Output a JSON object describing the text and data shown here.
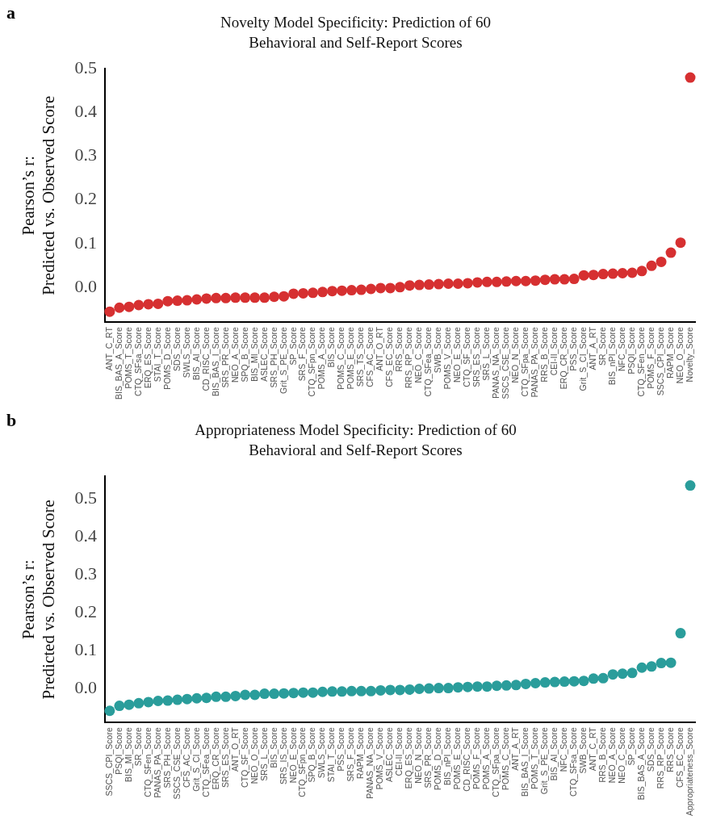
{
  "chart_data": [
    {
      "type": "scatter",
      "title": "Novelty Model Specificity: Prediction of 60\nBehavioral and Self-Report Scores",
      "ylabel": "Pearson’s r:\nPredicted vs. Observed Score",
      "annotations": [
        "a"
      ],
      "marker": "circle",
      "categories": [
        "ANT_C_RT",
        "BIS_BAS_A_Score",
        "POMS_T_Score",
        "CTQ_SFsa_Score",
        "ERQ_ES_Score",
        "STAI_T_Score",
        "POMS_D_Score",
        "SDS_Score",
        "SWLS_Score",
        "BIS_AI_Score",
        "CD_RISC_Score",
        "BIS_BAS_I_Score",
        "SRS_PR_Score",
        "NEO_A_Score",
        "SPQ_B_Score",
        "BIS_MI_Score",
        "ASLEC_Score",
        "SRS_PH_Score",
        "Grit_S_PE_Score",
        "SP_Score",
        "SRS_F_Score",
        "CTQ_SFpn_Score",
        "POMS_A_Score",
        "BIS_Score",
        "POMS_C_Score",
        "POMS_E_Score",
        "SRS_TS_Score",
        "CFS_AC_Score",
        "ANT_O_RT",
        "CFS_EC_Score",
        "RRS_Score",
        "RRS_RP_Score",
        "NEO_C_Score",
        "CTQ_SFea_Score",
        "SWB_Score",
        "POMS_V_Score",
        "NEO_E_Score",
        "CTQ_SF_Score",
        "SRS_ES_Score",
        "SRS_L_Score",
        "PANAS_NA_Score",
        "SSCS_CSE_Score",
        "NEO_N_Score",
        "CTQ_SFpa_Score",
        "PANAS_PA_Score",
        "RRS_B_Score",
        "CEI-II_Score",
        "ERQ_CR_Score",
        "PSS_Score",
        "Grit_S_CI_Score",
        "ANT_A_RT",
        "SR_Score",
        "BIS_nPI_Score",
        "NFC_Score",
        "PSQI_Score",
        "CTQ_SFen_Score",
        "POMS_F_Score",
        "SSCS_CPI_Score",
        "RAPM_Score",
        "NEO_O_Score",
        "Novelty_Score"
      ],
      "series": [
        {
          "color": "#d63031",
          "values": [
            -0.056,
            -0.047,
            -0.045,
            -0.041,
            -0.039,
            -0.038,
            -0.032,
            -0.031,
            -0.03,
            -0.028,
            -0.026,
            -0.025,
            -0.025,
            -0.024,
            -0.024,
            -0.024,
            -0.024,
            -0.022,
            -0.021,
            -0.015,
            -0.014,
            -0.013,
            -0.011,
            -0.009,
            -0.008,
            -0.007,
            -0.006,
            -0.004,
            -0.002,
            -0.002,
            0.0,
            0.004,
            0.005,
            0.006,
            0.007,
            0.008,
            0.008,
            0.009,
            0.011,
            0.012,
            0.012,
            0.013,
            0.014,
            0.014,
            0.015,
            0.017,
            0.018,
            0.018,
            0.019,
            0.027,
            0.028,
            0.03,
            0.031,
            0.032,
            0.033,
            0.037,
            0.049,
            0.058,
            0.079,
            0.102,
            0.48
          ]
        }
      ],
      "ylim": [
        -0.08,
        0.5
      ],
      "yticks": [
        {
          "value": 0,
          "label": "0.0"
        },
        0.1,
        0.2,
        0.3,
        0.4,
        0.5
      ],
      "grid": false
    },
    {
      "type": "scatter",
      "title": "Appropriateness Model Specificity: Prediction of 60\nBehavioral and Self-Report Scores",
      "ylabel": "Pearson’s r:\nPredicted vs. Observed Score",
      "annotations": [
        "b"
      ],
      "marker": "circle",
      "categories": [
        "SSCS_CPI_Score",
        "PSQI_Score",
        "BIS_MI_Score",
        "SR_Score",
        "CTQ_SFen_Score",
        "PANAS_PA_Score",
        "SRS_PH_Score",
        "SSCS_CSE_Score",
        "CFS_AC_Score",
        "Grit_S_CI_Score",
        "CTQ_SFea_Score",
        "ERQ_CR_Score",
        "SRS_ES_Score",
        "ANT_O_RT",
        "CTQ_SF_Score",
        "NEO_O_Score",
        "SRS_L_Score",
        "BIS_Score",
        "SRS_IS_Score",
        "NEO_E_Score",
        "CTQ_SFpn_Score",
        "SPQ_B_Score",
        "SWLS_Score",
        "STAI_T_Score",
        "PSS_Score",
        "SRS_F_Score",
        "RAPM_Score",
        "PANAS_NA_Score",
        "POMS_V_Score",
        "ASLEC_Score",
        "CEI-II_Score",
        "ERQ_ES_Score",
        "NEO_N_Score",
        "SRS_PR_Score",
        "POMS_D_Score",
        "BIS_nPI_Score",
        "POMS_E_Score",
        "CD_RISC_Score",
        "POMS_F_Score",
        "POMS_A_Score",
        "CTQ_SFpa_Score",
        "POMS_C_Score",
        "ANT_A_RT",
        "BIS_BAS_I_Score",
        "POMS_T_Score",
        "Grit_S_PE_Score",
        "BIS_AI_Score",
        "NFC_Score",
        "CTQ_SFsa_Score",
        "SWB_Score",
        "ANT_C_RT",
        "RRS_B_Score",
        "NEO_A_Score",
        "NEO_C_Score",
        "SP_Score",
        "BIS_BAS_A_Score",
        "SDS_Score",
        "RRS_RP_Score",
        "RRS_Score",
        "CFS_EC_Score",
        "Appropriateness_Score"
      ],
      "series": [
        {
          "color": "#2a9d9b",
          "values": [
            -0.059,
            -0.046,
            -0.043,
            -0.039,
            -0.036,
            -0.033,
            -0.032,
            -0.03,
            -0.028,
            -0.026,
            -0.025,
            -0.022,
            -0.022,
            -0.02,
            -0.017,
            -0.017,
            -0.014,
            -0.014,
            -0.013,
            -0.012,
            -0.011,
            -0.011,
            -0.009,
            -0.008,
            -0.008,
            -0.007,
            -0.007,
            -0.007,
            -0.005,
            -0.004,
            -0.004,
            -0.003,
            -0.001,
            0.0,
            0.001,
            0.001,
            0.003,
            0.004,
            0.005,
            0.005,
            0.007,
            0.008,
            0.009,
            0.012,
            0.014,
            0.016,
            0.017,
            0.018,
            0.019,
            0.02,
            0.026,
            0.027,
            0.037,
            0.039,
            0.041,
            0.055,
            0.058,
            0.067,
            0.068,
            0.146,
            0.536
          ]
        }
      ],
      "ylim": [
        -0.09,
        0.56
      ],
      "yticks": [
        {
          "value": 0,
          "label": "0.0"
        },
        0.1,
        0.2,
        0.3,
        0.4,
        0.5
      ],
      "grid": false
    }
  ]
}
